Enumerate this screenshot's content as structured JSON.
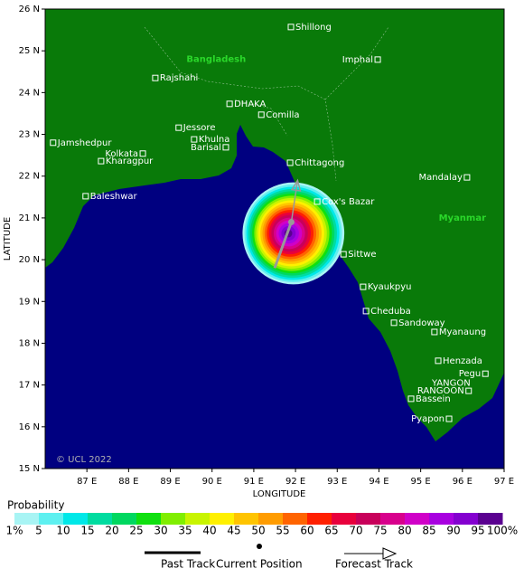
{
  "map": {
    "xlim": [
      86,
      97
    ],
    "ylim": [
      15,
      26
    ],
    "xticks": [
      {
        "value": 87,
        "label": "87 E"
      },
      {
        "value": 88,
        "label": "88 E"
      },
      {
        "value": 89,
        "label": "89 E"
      },
      {
        "value": 90,
        "label": "90 E"
      },
      {
        "value": 91,
        "label": "91 E"
      },
      {
        "value": 92,
        "label": "92 E"
      },
      {
        "value": 93,
        "label": "93 E"
      },
      {
        "value": 94,
        "label": "94 E"
      },
      {
        "value": 95,
        "label": "95 E"
      },
      {
        "value": 96,
        "label": "96 E"
      },
      {
        "value": 97,
        "label": "97 E"
      }
    ],
    "yticks": [
      {
        "value": 15,
        "label": "15 N"
      },
      {
        "value": 16,
        "label": "16 N"
      },
      {
        "value": 17,
        "label": "17 N"
      },
      {
        "value": 18,
        "label": "18 N"
      },
      {
        "value": 19,
        "label": "19 N"
      },
      {
        "value": 20,
        "label": "20 N"
      },
      {
        "value": 21,
        "label": "21 N"
      },
      {
        "value": 22,
        "label": "22 N"
      },
      {
        "value": 23,
        "label": "23 N"
      },
      {
        "value": 24,
        "label": "24 N"
      },
      {
        "value": 25,
        "label": "25 N"
      },
      {
        "value": 26,
        "label": "26 N"
      }
    ],
    "xlabel": "LONGITUDE",
    "ylabel": "LATITUDE",
    "copyright": "© UCL 2022",
    "countries": [
      {
        "name": "Bangladesh",
        "lon": 90.1,
        "lat": 24.8
      },
      {
        "name": "Myanmar",
        "lon": 96.0,
        "lat": 21.0
      }
    ],
    "cities": [
      {
        "name": "Shillong",
        "lon": 91.89,
        "lat": 25.57,
        "side": "right"
      },
      {
        "name": "Imphal",
        "lon": 93.97,
        "lat": 24.79,
        "side": "left"
      },
      {
        "name": "Rajshahi",
        "lon": 88.64,
        "lat": 24.35,
        "side": "right"
      },
      {
        "name": "DHAKA",
        "lon": 90.42,
        "lat": 23.73,
        "side": "right"
      },
      {
        "name": "Comilla",
        "lon": 91.18,
        "lat": 23.47,
        "side": "right"
      },
      {
        "name": "Jessore",
        "lon": 89.2,
        "lat": 23.16,
        "side": "right"
      },
      {
        "name": "Khulna",
        "lon": 89.57,
        "lat": 22.88,
        "side": "right"
      },
      {
        "name": "Barisal",
        "lon": 90.33,
        "lat": 22.69,
        "side": "left"
      },
      {
        "name": "Jamshedpur",
        "lon": 86.19,
        "lat": 22.8,
        "side": "right"
      },
      {
        "name": "Kolkata",
        "lon": 88.34,
        "lat": 22.54,
        "side": "left"
      },
      {
        "name": "Kharagpur",
        "lon": 87.34,
        "lat": 22.36,
        "side": "right"
      },
      {
        "name": "Chittagong",
        "lon": 91.87,
        "lat": 22.32,
        "side": "right"
      },
      {
        "name": "Mandalay",
        "lon": 96.11,
        "lat": 21.97,
        "side": "left"
      },
      {
        "name": "Baleshwar",
        "lon": 86.97,
        "lat": 21.52,
        "side": "right"
      },
      {
        "name": "Cox's Bazar",
        "lon": 92.52,
        "lat": 21.39,
        "side": "right"
      },
      {
        "name": "Sittwe",
        "lon": 93.15,
        "lat": 20.13,
        "side": "right"
      },
      {
        "name": "Kyaukpyu",
        "lon": 93.62,
        "lat": 19.35,
        "side": "right"
      },
      {
        "name": "Cheduba",
        "lon": 93.69,
        "lat": 18.77,
        "side": "right"
      },
      {
        "name": "Sandoway",
        "lon": 94.36,
        "lat": 18.49,
        "side": "right"
      },
      {
        "name": "Myanaung",
        "lon": 95.33,
        "lat": 18.27,
        "side": "right"
      },
      {
        "name": "Henzada",
        "lon": 95.42,
        "lat": 17.58,
        "side": "right"
      },
      {
        "name": "Pegu",
        "lon": 96.55,
        "lat": 17.27,
        "side": "left"
      },
      {
        "name": "RANGOON",
        "lon": 96.15,
        "lat": 16.86,
        "side": "left"
      },
      {
        "name": "Bassein",
        "lon": 94.77,
        "lat": 16.67,
        "side": "right"
      },
      {
        "name": "Pyapon",
        "lon": 95.68,
        "lat": 16.19,
        "side": "left"
      }
    ],
    "annotations": [
      {
        "text": "YANGON",
        "lon": 95.73,
        "lat": 17.05
      }
    ],
    "probability_field": {
      "lon": 91.95,
      "lat": 20.63,
      "radius_deg": 1.22
    },
    "past_track": [
      [
        91.5,
        19.8
      ],
      [
        91.9,
        20.9
      ]
    ],
    "current_position": [
      91.9,
      20.9
    ],
    "forecast_track": [
      [
        91.9,
        20.9
      ],
      [
        92.05,
        21.9
      ]
    ],
    "land_color": "#097a09",
    "sea_color": "#000080",
    "country_color": "#2ad82a"
  },
  "probability_legend": {
    "title": "Probability",
    "labels": [
      "1%",
      "5",
      "10",
      "15",
      "20",
      "25",
      "30",
      "35",
      "40",
      "45",
      "50",
      "55",
      "60",
      "65",
      "70",
      "75",
      "80",
      "85",
      "90",
      "95",
      "100%"
    ],
    "colors": [
      "#a8f4f4",
      "#5ef0f0",
      "#00e8e8",
      "#00dca0",
      "#00d860",
      "#10e010",
      "#80ee00",
      "#c8f400",
      "#fff000",
      "#ffc400",
      "#ff9c00",
      "#ff6400",
      "#ff2000",
      "#e8003c",
      "#c8005a",
      "#d8008c",
      "#d000c8",
      "#a800e0",
      "#8400d0",
      "#5a0090"
    ]
  },
  "track_legend": {
    "past": "Past Track",
    "current": "Current Position",
    "forecast": "Forecast Track"
  }
}
